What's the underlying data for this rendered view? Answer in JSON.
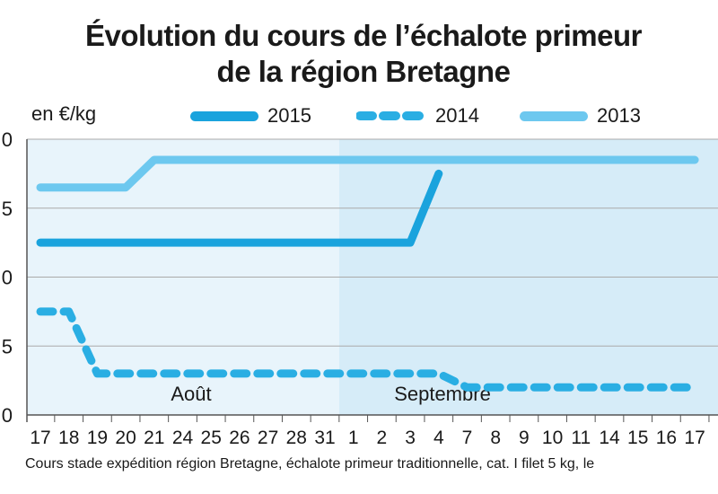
{
  "chart_data": {
    "type": "line",
    "title_line1": "Évolution du cours de l’échalote primeur",
    "title_line2": "de la région Bretagne",
    "unit_label": "en €/kg",
    "ytick_labels": [
      "0",
      "5",
      "0",
      "5",
      "0"
    ],
    "categories": [
      "17",
      "18",
      "19",
      "20",
      "21",
      "24",
      "25",
      "26",
      "27",
      "28",
      "31",
      "1",
      "2",
      "3",
      "4",
      "7",
      "8",
      "9",
      "10",
      "11",
      "14",
      "15",
      "16",
      "17"
    ],
    "months": [
      {
        "name": "Août",
        "start_index": 0,
        "end_index": 10
      },
      {
        "name": "Septembre",
        "start_index": 11,
        "end_index": 23
      }
    ],
    "series": [
      {
        "name": "2015",
        "color": "#1aa3dd",
        "style": "solid",
        "values": [
          2.25,
          2.25,
          2.25,
          2.25,
          2.25,
          2.25,
          2.25,
          2.25,
          2.25,
          2.25,
          2.25,
          2.25,
          2.25,
          2.25,
          2.75,
          null,
          null,
          null,
          null,
          null,
          null,
          null,
          null,
          null
        ]
      },
      {
        "name": "2014",
        "color": "#2aaee3",
        "style": "dashed",
        "values": [
          1.75,
          1.75,
          1.3,
          1.3,
          1.3,
          1.3,
          1.3,
          1.3,
          1.3,
          1.3,
          1.3,
          1.3,
          1.3,
          1.3,
          1.3,
          1.2,
          1.2,
          1.2,
          1.2,
          1.2,
          1.2,
          1.2,
          1.2,
          1.2
        ]
      },
      {
        "name": "2013",
        "color": "#6dc8ef",
        "style": "solid",
        "values": [
          2.65,
          2.65,
          2.65,
          2.65,
          2.85,
          2.85,
          2.85,
          2.85,
          2.85,
          2.85,
          2.85,
          2.85,
          2.85,
          2.85,
          2.85,
          2.85,
          2.85,
          2.85,
          2.85,
          2.85,
          2.85,
          2.85,
          2.85,
          2.85
        ]
      }
    ],
    "ylim": [
      1.0,
      3.0
    ],
    "background_colors": {
      "aout": "#e8f4fb",
      "septembre": "#d6ecf8"
    }
  },
  "footnote": "Cours stade expédition région Bretagne, échalote primeur traditionnelle, cat. I filet 5 kg, le"
}
